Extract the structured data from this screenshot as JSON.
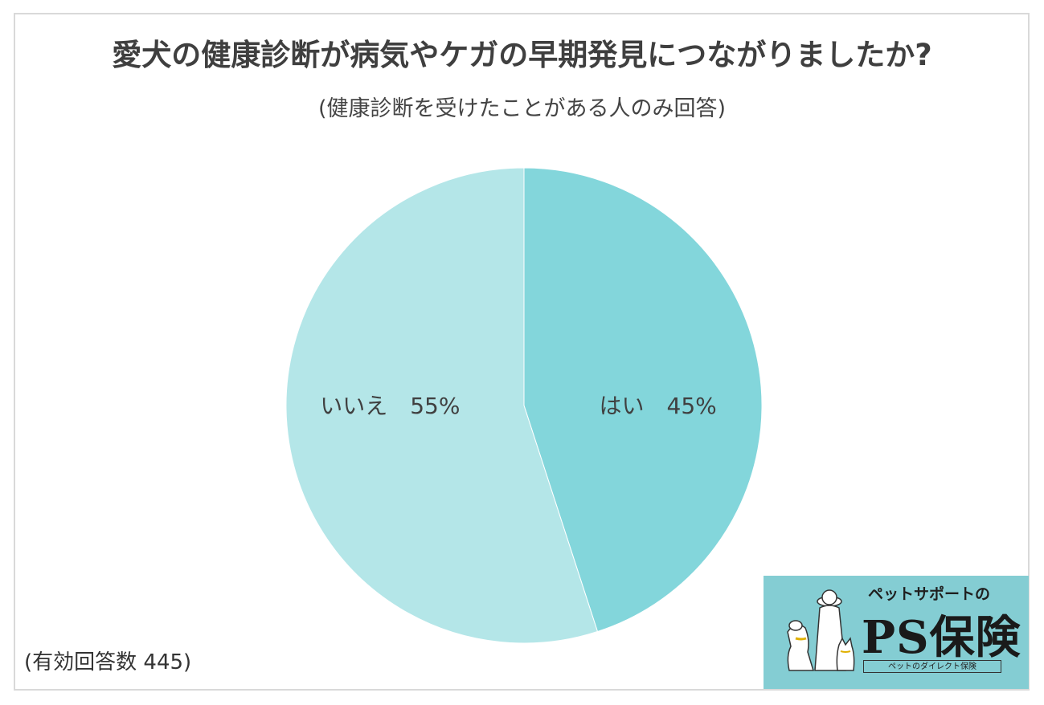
{
  "title": "愛犬の健康診断が病気やケガの早期発見につながりましたか?",
  "subtitle": "(健康診断を受けたことがある人のみ回答)",
  "footnote": "(有効回答数 445)",
  "chart_data": {
    "type": "pie",
    "title": "愛犬の健康診断が病気やケガの早期発見につながりましたか?",
    "subtitle": "(健康診断を受けたことがある人のみ回答)",
    "categories": [
      "はい",
      "いいえ"
    ],
    "values": [
      45,
      55
    ],
    "unit": "%",
    "labels": [
      "はい　45%",
      "いいえ　55%"
    ],
    "colors": [
      "#83d6db",
      "#b4e6e8"
    ],
    "start": "12 o'clock, clockwise",
    "legend": "none"
  },
  "logo": {
    "tagline": "ペットサポートの",
    "brand": "PS保険",
    "subtext": "ペットのダイレクト保険",
    "background": "#84cdd3"
  }
}
